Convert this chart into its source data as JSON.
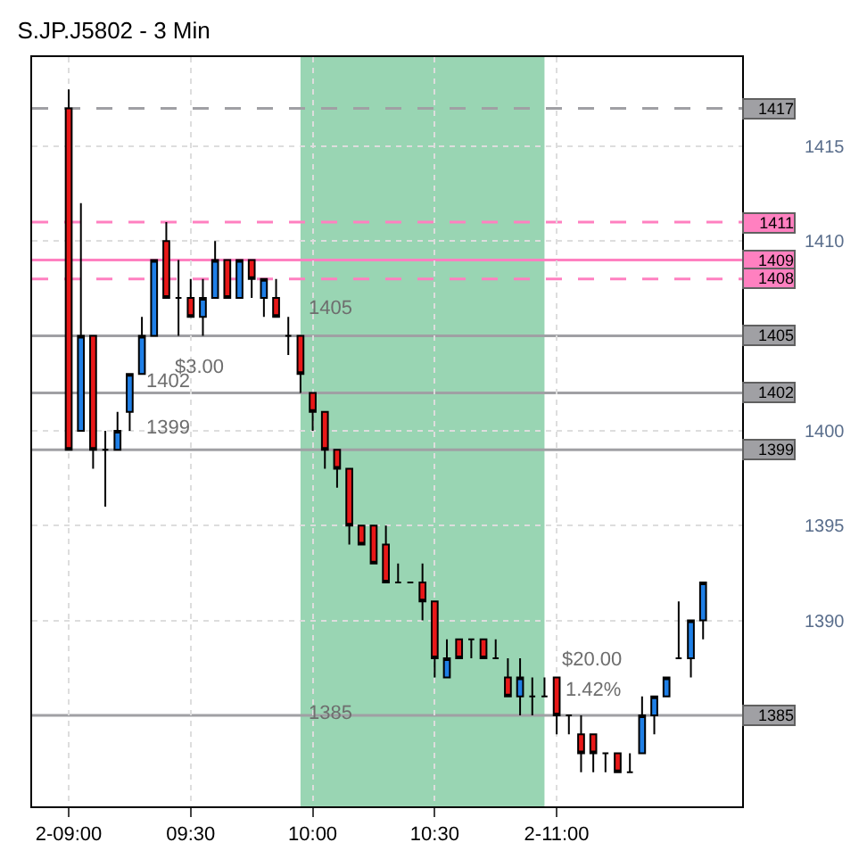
{
  "chart_data": {
    "type": "candlestick",
    "title": "S.JP.J5802 - 3 Min",
    "x": [
      9.0,
      9.05,
      9.1,
      9.15,
      9.2,
      9.25,
      9.3,
      9.35,
      9.4,
      9.45,
      9.5,
      9.55,
      9.6,
      9.65,
      9.7,
      9.75,
      9.8,
      9.85,
      9.9,
      9.95,
      10.0,
      10.05,
      10.1,
      10.15,
      10.2,
      10.25,
      10.3,
      10.35,
      10.4,
      10.45,
      10.5,
      10.55,
      10.6,
      10.65,
      10.7,
      10.75,
      10.8,
      10.85,
      10.9,
      10.95,
      11.0,
      11.05,
      11.1,
      11.15,
      11.2,
      11.25,
      11.3,
      11.35,
      11.4,
      11.45,
      11.5,
      11.55,
      11.6
    ],
    "ohlc": [
      [
        1417,
        1418,
        1399,
        1399
      ],
      [
        1400,
        1412,
        1400,
        1405
      ],
      [
        1405,
        1405,
        1398,
        1399
      ],
      [
        1399,
        1400,
        1396,
        1399
      ],
      [
        1399,
        1401,
        1399,
        1400
      ],
      [
        1401,
        1403,
        1400,
        1403
      ],
      [
        1403,
        1406,
        1403,
        1405
      ],
      [
        1405,
        1409,
        1405,
        1409
      ],
      [
        1410,
        1411,
        1407,
        1407
      ],
      [
        1407,
        1409,
        1405,
        1407
      ],
      [
        1407,
        1408,
        1406,
        1406
      ],
      [
        1406,
        1408,
        1405,
        1407
      ],
      [
        1407,
        1410,
        1407,
        1409
      ],
      [
        1409,
        1409,
        1407,
        1407
      ],
      [
        1407,
        1409,
        1407,
        1409
      ],
      [
        1409,
        1409,
        1407,
        1408
      ],
      [
        1407,
        1408,
        1406,
        1408
      ],
      [
        1407,
        1408,
        1406,
        1406
      ],
      [
        1405,
        1406,
        1404,
        1405
      ],
      [
        1405,
        1405,
        1402,
        1403
      ],
      [
        1402,
        1402,
        1400,
        1401
      ],
      [
        1401,
        1401,
        1398,
        1399
      ],
      [
        1399,
        1399,
        1397,
        1398
      ],
      [
        1398,
        1398,
        1394,
        1395
      ],
      [
        1395,
        1395,
        1394,
        1394
      ],
      [
        1395,
        1395,
        1393,
        1393
      ],
      [
        1394,
        1395,
        1392,
        1392
      ],
      [
        1392,
        1393,
        1392,
        1392
      ],
      [
        1392,
        1392,
        1392,
        1392
      ],
      [
        1392,
        1393,
        1390,
        1391
      ],
      [
        1391,
        1391,
        1387,
        1388
      ],
      [
        1387,
        1389,
        1387,
        1388
      ],
      [
        1389,
        1389,
        1388,
        1388
      ],
      [
        1389,
        1389,
        1388,
        1389
      ],
      [
        1389,
        1389,
        1388,
        1388
      ],
      [
        1388,
        1389,
        1388,
        1388
      ],
      [
        1387,
        1388,
        1386,
        1386
      ],
      [
        1386,
        1388,
        1385,
        1387
      ],
      [
        1386,
        1387,
        1385,
        1386
      ],
      [
        1386,
        1387,
        1386,
        1386
      ],
      [
        1387,
        1387,
        1384,
        1385
      ],
      [
        1385,
        1385,
        1384,
        1385
      ],
      [
        1384,
        1385,
        1382,
        1383
      ],
      [
        1384,
        1384,
        1382,
        1383
      ],
      [
        1383,
        1383,
        1382,
        1383
      ],
      [
        1383,
        1383,
        1382,
        1382
      ],
      [
        1382,
        1383,
        1382,
        1382
      ],
      [
        1383,
        1386,
        1383,
        1385
      ],
      [
        1385,
        1386,
        1384,
        1386
      ],
      [
        1386,
        1387,
        1386,
        1387
      ],
      [
        1388,
        1391,
        1388,
        1388
      ],
      [
        1388,
        1390,
        1387,
        1390
      ],
      [
        1390,
        1392,
        1389,
        1392
      ]
    ],
    "colors": [
      "#e81818",
      "#1f7fe6",
      "#e81818",
      "#000000",
      "#1f7fe6",
      "#1f7fe6",
      "#1f7fe6",
      "#1f7fe6",
      "#e81818",
      "#000000",
      "#e81818",
      "#1f7fe6",
      "#1f7fe6",
      "#e81818",
      "#1f7fe6",
      "#e81818",
      "#1f7fe6",
      "#e81818",
      "#000000",
      "#e81818",
      "#e81818",
      "#e81818",
      "#e81818",
      "#e81818",
      "#e81818",
      "#e81818",
      "#e81818",
      "#000000",
      "#000000",
      "#e81818",
      "#e81818",
      "#1f7fe6",
      "#e81818",
      "#000000",
      "#e81818",
      "#000000",
      "#e81818",
      "#1f7fe6",
      "#000000",
      "#000000",
      "#e81818",
      "#000000",
      "#e81818",
      "#e81818",
      "#000000",
      "#e81818",
      "#000000",
      "#1f7fe6",
      "#1f7fe6",
      "#1f7fe6",
      "#000000",
      "#1f7fe6",
      "#1f7fe6"
    ],
    "xlim": [
      8.85,
      11.76
    ],
    "xticks": [
      {
        "value": 9,
        "label": "2-09:00"
      },
      {
        "value": 9.5,
        "label": "09:30"
      },
      {
        "value": 10,
        "label": "10:00"
      },
      {
        "value": 10.5,
        "label": "10:30"
      },
      {
        "value": 11,
        "label": "2-11:00"
      }
    ],
    "ylim": [
      1380.2,
      1419.7
    ],
    "yticks": [
      1390,
      1395,
      1400,
      1410,
      1415
    ],
    "grid": true,
    "ref_lines": [
      {
        "axis": "y",
        "value": 1417,
        "label": "1417",
        "color": "#a0a0a4",
        "line_style": "dashed"
      },
      {
        "axis": "y",
        "value": 1411,
        "label": "1411",
        "color": "#ff80c0",
        "line_style": "dashed"
      },
      {
        "axis": "y",
        "value": 1409,
        "label": "1409",
        "color": "#ff80c0",
        "line_style": "solid"
      },
      {
        "axis": "y",
        "value": 1408,
        "label": "1408",
        "color": "#ff80c0",
        "line_style": "dashed"
      },
      {
        "axis": "y",
        "value": 1405,
        "label": "1405",
        "color": "#a0a0a4",
        "line_style": "solid"
      },
      {
        "axis": "y",
        "value": 1402,
        "label": "1402",
        "color": "#a0a0a4",
        "line_style": "solid"
      },
      {
        "axis": "y",
        "value": 1399,
        "label": "1399",
        "color": "#a0a0a4",
        "line_style": "solid"
      },
      {
        "axis": "y",
        "value": 1385,
        "label": "1385",
        "color": "#a0a0a4",
        "line_style": "solid"
      }
    ],
    "bands": [
      {
        "axis": "x",
        "from": 9.95,
        "to": 10.95,
        "color": "#99d5b3"
      }
    ],
    "annotations": [
      "1405",
      "1385",
      "$3.00",
      "1402",
      "1399",
      "$20.00",
      "1.42%"
    ]
  }
}
